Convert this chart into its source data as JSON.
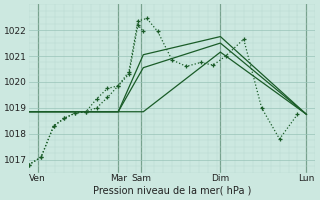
{
  "bg_color": "#cce8e0",
  "grid_major_color": "#99c4b8",
  "grid_minor_color": "#b8d8d0",
  "line_color": "#1a5c28",
  "line_color2": "#2d7a40",
  "xlabel": "Pression niveau de la mer( hPa )",
  "ylim": [
    1016.5,
    1022.9
  ],
  "xlim": [
    0,
    8.0
  ],
  "yticks": [
    1017,
    1018,
    1019,
    1020,
    1021,
    1022
  ],
  "day_positions": [
    0.25,
    2.5,
    3.15,
    5.35,
    7.75
  ],
  "day_labels": [
    "Ven",
    "Mar",
    "Sam",
    "Dim",
    "Lun"
  ],
  "vline_positions": [
    0.25,
    2.5,
    3.15,
    5.35,
    7.75
  ],
  "series_dotted": [
    {
      "x": [
        0.0,
        0.35,
        0.7,
        1.0,
        1.3,
        1.6,
        1.9,
        2.2,
        2.5,
        2.8,
        3.05,
        3.2
      ],
      "y": [
        1016.8,
        1017.1,
        1018.3,
        1018.6,
        1018.8,
        1018.85,
        1019.35,
        1019.75,
        1019.85,
        1020.3,
        1022.2,
        1021.95
      ]
    },
    {
      "x": [
        0.0,
        0.35,
        0.7,
        1.0,
        1.3,
        1.6,
        1.9,
        2.2,
        2.5,
        2.8,
        3.05,
        3.3,
        3.6,
        4.0,
        4.4,
        4.8,
        5.15,
        5.5,
        6.0,
        6.5,
        7.0,
        7.5
      ],
      "y": [
        1016.8,
        1017.1,
        1018.3,
        1018.6,
        1018.8,
        1018.85,
        1019.0,
        1019.4,
        1019.85,
        1020.4,
        1022.35,
        1022.45,
        1021.95,
        1020.85,
        1020.6,
        1020.75,
        1020.65,
        1021.0,
        1021.65,
        1019.0,
        1017.8,
        1018.75
      ]
    }
  ],
  "series_solid": [
    {
      "x": [
        0.0,
        2.5,
        3.2,
        5.35,
        7.75
      ],
      "y": [
        1018.85,
        1018.85,
        1018.85,
        1021.15,
        1018.75
      ]
    },
    {
      "x": [
        0.0,
        2.5,
        3.2,
        5.35,
        7.75
      ],
      "y": [
        1018.85,
        1018.85,
        1020.55,
        1021.5,
        1018.75
      ]
    },
    {
      "x": [
        0.0,
        2.5,
        3.2,
        5.35,
        7.75
      ],
      "y": [
        1018.85,
        1018.85,
        1021.05,
        1021.75,
        1018.75
      ]
    }
  ]
}
